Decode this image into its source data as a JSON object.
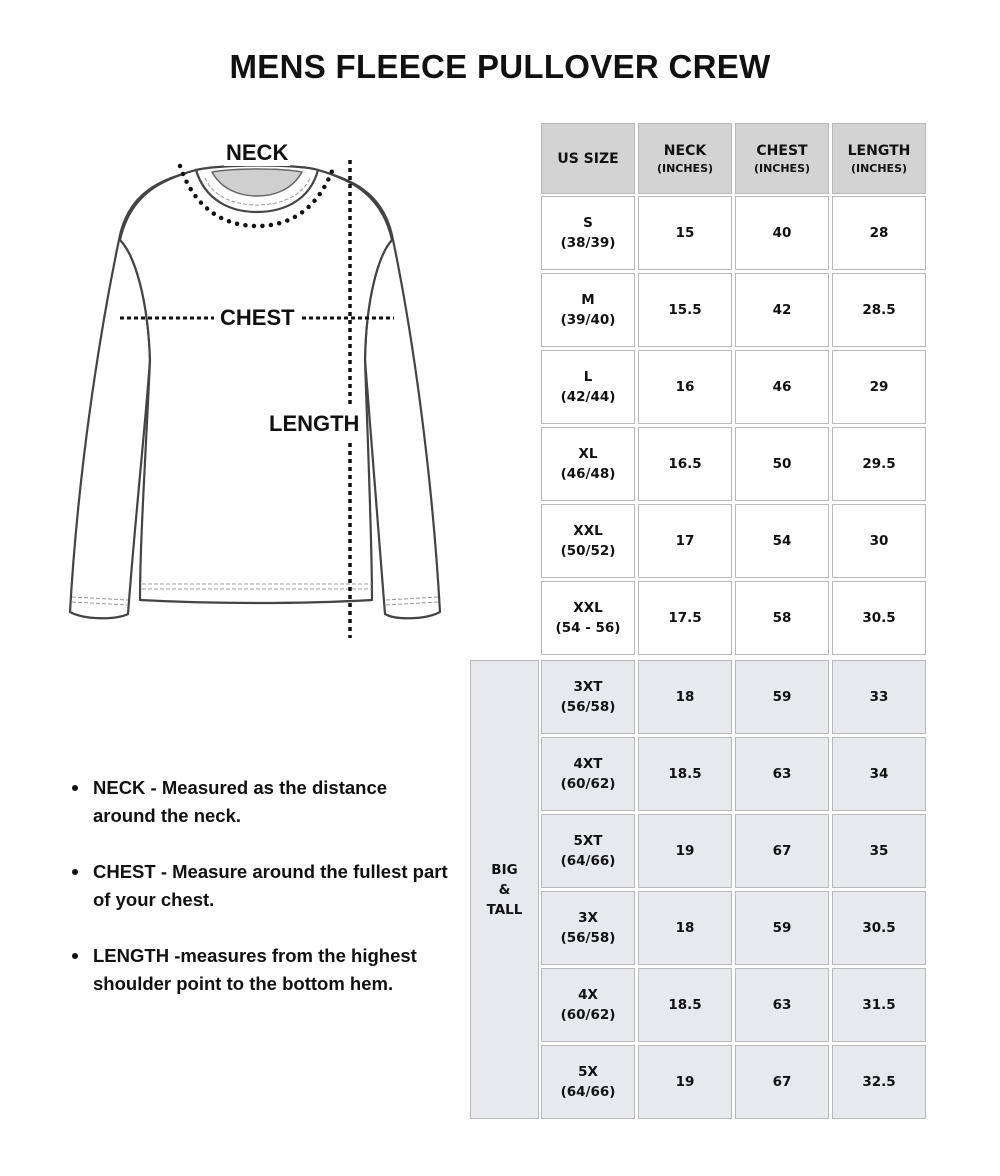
{
  "title": "MENS FLEECE PULLOVER CREW",
  "diagram": {
    "neck_label": "NECK",
    "chest_label": "CHEST",
    "length_label": "LENGTH"
  },
  "table": {
    "headers": [
      {
        "main": "US SIZE",
        "sub": ""
      },
      {
        "main": "NECK",
        "sub": "(INCHES)"
      },
      {
        "main": "CHEST",
        "sub": "(INCHES)"
      },
      {
        "main": "LENGTH",
        "sub": "(INCHES)"
      }
    ],
    "regular_rows": [
      {
        "size": "S",
        "alt": "(38/39)",
        "neck": "15",
        "chest": "40",
        "length": "28"
      },
      {
        "size": "M",
        "alt": "(39/40)",
        "neck": "15.5",
        "chest": "42",
        "length": "28.5"
      },
      {
        "size": "L",
        "alt": "(42/44)",
        "neck": "16",
        "chest": "46",
        "length": "29"
      },
      {
        "size": "XL",
        "alt": "(46/48)",
        "neck": "16.5",
        "chest": "50",
        "length": "29.5"
      },
      {
        "size": "XXL",
        "alt": "(50/52)",
        "neck": "17",
        "chest": "54",
        "length": "30"
      },
      {
        "size": "XXL",
        "alt": "(54 - 56)",
        "neck": "17.5",
        "chest": "58",
        "length": "30.5"
      }
    ],
    "big_tall_label": [
      "BIG",
      "&",
      "TALL"
    ],
    "big_tall_rows": [
      {
        "size": "3XT",
        "alt": "(56/58)",
        "neck": "18",
        "chest": "59",
        "length": "33"
      },
      {
        "size": "4XT",
        "alt": "(60/62)",
        "neck": "18.5",
        "chest": "63",
        "length": "34"
      },
      {
        "size": "5XT",
        "alt": "(64/66)",
        "neck": "19",
        "chest": "67",
        "length": "35"
      },
      {
        "size": "3X",
        "alt": "(56/58)",
        "neck": "18",
        "chest": "59",
        "length": "30.5"
      },
      {
        "size": "4X",
        "alt": "(60/62)",
        "neck": "18.5",
        "chest": "63",
        "length": "31.5"
      },
      {
        "size": "5X",
        "alt": "(64/66)",
        "neck": "19",
        "chest": "67",
        "length": "32.5"
      }
    ],
    "colors": {
      "header_bg": "#d3d3d3",
      "big_tall_bg": "#e7e9ec",
      "border": "#b9b9b9"
    }
  },
  "notes": [
    "NECK - Measured as the distance around the neck.",
    "CHEST - Measure around the fullest part of your chest.",
    "LENGTH -measures from the highest shoulder point to the bottom hem."
  ]
}
